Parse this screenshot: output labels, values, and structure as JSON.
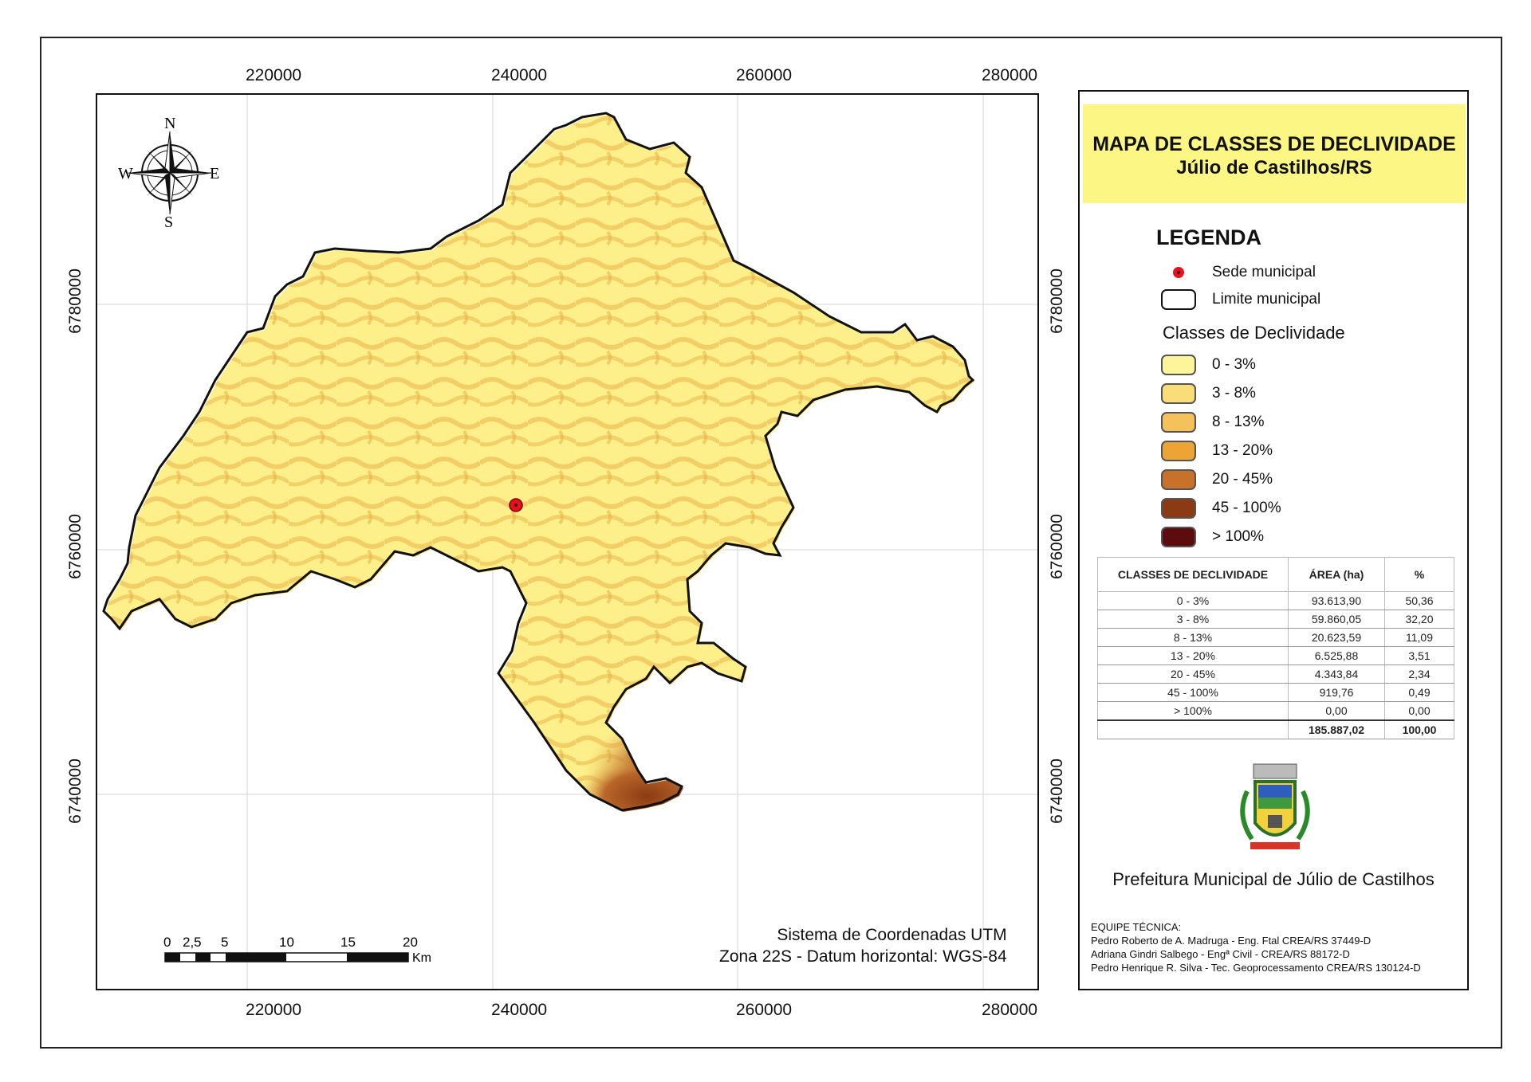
{
  "map": {
    "title": "MAPA DE CLASSES DE DECLIVIDADE",
    "subtitle": "Júlio de Castilhos/RS",
    "x_ticks_top": [
      "220000",
      "240000",
      "260000",
      "280000"
    ],
    "x_ticks_bottom": [
      "220000",
      "240000",
      "260000",
      "280000"
    ],
    "y_ticks_left": [
      "6780000",
      "6760000",
      "6740000"
    ],
    "y_ticks_right": [
      "6780000",
      "6760000",
      "6740000"
    ],
    "compass": {
      "n": "N",
      "s": "S",
      "e": "E",
      "w": "W"
    },
    "scale_labels": [
      "0",
      "2,5",
      "5",
      "10",
      "15",
      "20"
    ],
    "scale_unit": "Km",
    "coord_system_line1": "Sistema de Coordenadas UTM",
    "coord_system_line2": "Zona 22S - Datum horizontal: WGS-84",
    "fill_colors": {
      "base": "#fdf08a",
      "band": "#f2cc62",
      "steep": "#c77a2c",
      "very_steep": "#8a3b12"
    },
    "seat_marker_color": "#e8101a"
  },
  "legend": {
    "title": "LEGENDA",
    "seat_label": "Sede municipal",
    "limit_label": "Limite municipal",
    "classes_heading": "Classes de Declividade",
    "classes": [
      {
        "label": "0 - 3%",
        "color": "#fdf59a"
      },
      {
        "label": "3 - 8%",
        "color": "#fadd78"
      },
      {
        "label": "8 - 13%",
        "color": "#f4c15a"
      },
      {
        "label": "13 - 20%",
        "color": "#eca535"
      },
      {
        "label": "20 - 45%",
        "color": "#c8712a"
      },
      {
        "label": "45 - 100%",
        "color": "#8c3a14"
      },
      {
        "label": "> 100%",
        "color": "#5c0c0c"
      }
    ]
  },
  "table": {
    "headers": [
      "CLASSES DE DECLIVIDADE",
      "ÁREA (ha)",
      "%"
    ],
    "rows": [
      [
        "0 - 3%",
        "93.613,90",
        "50,36"
      ],
      [
        "3 - 8%",
        "59.860,05",
        "32,20"
      ],
      [
        "8 - 13%",
        "20.623,59",
        "11,09"
      ],
      [
        "13 - 20%",
        "6.525,88",
        "3,51"
      ],
      [
        "20 - 45%",
        "4.343,84",
        "2,34"
      ],
      [
        "45 - 100%",
        "919,76",
        "0,49"
      ],
      [
        "> 100%",
        "0,00",
        "0,00"
      ]
    ],
    "total": [
      "",
      "185.887,02",
      "100,00"
    ]
  },
  "footer": {
    "prefeitura": "Prefeitura Municipal de Júlio de Castilhos",
    "team_heading": "EQUIPE TÉCNICA:",
    "team": [
      "Pedro Roberto de A. Madruga - Eng. Ftal CREA/RS 37449-D",
      "Adriana Gindri Salbego - Engª Civil - CREA/RS 88172-D",
      "Pedro Henrique R. Silva - Tec. Geoprocessamento CREA/RS 130124-D"
    ]
  }
}
